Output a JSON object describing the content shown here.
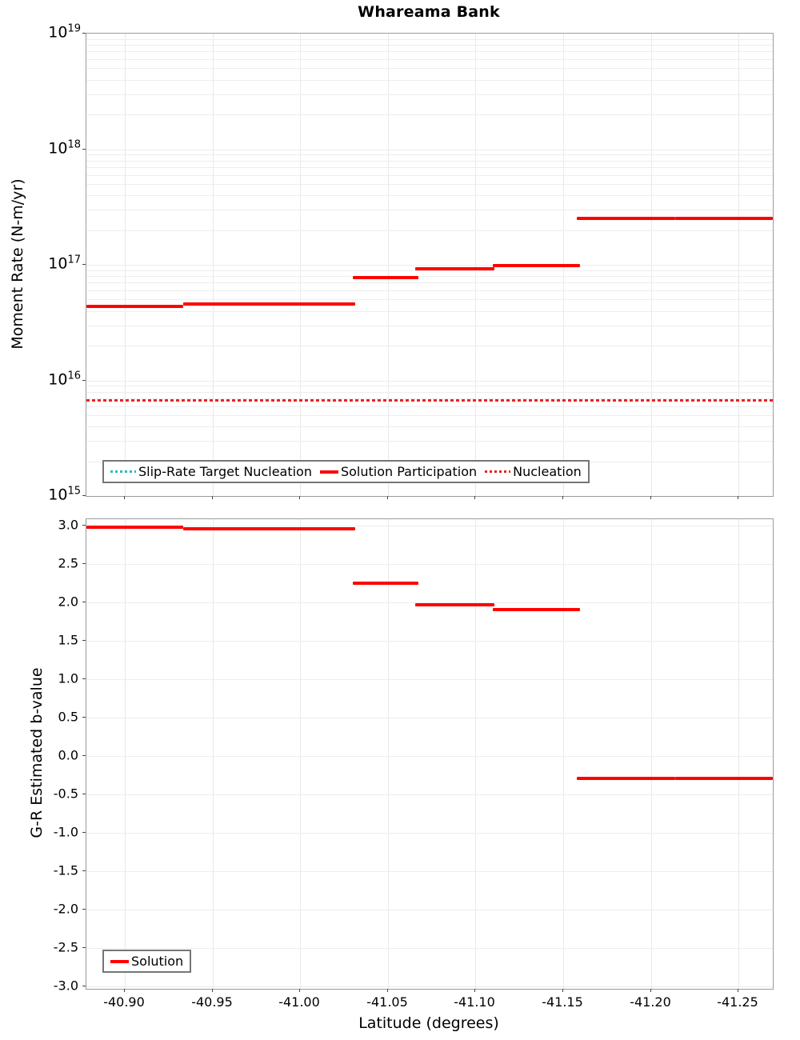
{
  "title": "Whareama Bank",
  "colors": {
    "solution": "#ff0000",
    "nucleation": "#ea2222",
    "slip_rate_target_nucleation": "#2bbdbd",
    "grid": "#e8e8e8",
    "plot_border": "#9b9b9b",
    "background": "#ffffff"
  },
  "chart_data": [
    {
      "type": "line",
      "subtype": "step-segments",
      "title": "Whareama Bank",
      "ylabel": "Moment Rate (N-m/yr)",
      "xlabel": "",
      "yscale": "log",
      "ylim": [
        1000000000000000.0,
        1e+19
      ],
      "xlim": [
        -40.878,
        -41.2696
      ],
      "x_axis_reversed_note": "latitude decreases left to right",
      "y_tick_exponents": [
        19,
        18,
        17,
        16,
        15
      ],
      "grid": true,
      "legend_position": "inside-bottom-left",
      "series": [
        {
          "name": "Slip-Rate Target Nucleation",
          "color": "#2bbdbd",
          "style": "dotted",
          "value": 6800000000000000.0,
          "note": "horizontal line coincident with Nucleation line (hidden beneath it)"
        },
        {
          "name": "Solution Participation",
          "color": "#ff0000",
          "style": "solid",
          "segments": [
            {
              "lat_start": -40.8781,
              "lat_end": -40.9333,
              "value": 4.4e+16
            },
            {
              "lat_start": -40.9333,
              "lat_end": -41.0314,
              "value": 4.6e+16
            },
            {
              "lat_start": -41.03,
              "lat_end": -41.0675,
              "value": 7.8e+16
            },
            {
              "lat_start": -41.0656,
              "lat_end": -41.1108,
              "value": 9.2e+16
            },
            {
              "lat_start": -41.1099,
              "lat_end": -41.1596,
              "value": 9.8e+16
            },
            {
              "lat_start": -41.1578,
              "lat_end": -41.2139,
              "value": 2.5e+17
            },
            {
              "lat_start": -41.2139,
              "lat_end": -41.2696,
              "value": 2.5e+17
            }
          ]
        },
        {
          "name": "Nucleation",
          "color": "#ea2222",
          "style": "dotted",
          "value": 6800000000000000.0
        }
      ]
    },
    {
      "type": "line",
      "subtype": "step-segments",
      "title": "",
      "ylabel": "G-R Estimated b-value",
      "xlabel": "Latitude (degrees)",
      "yscale": "linear",
      "ylim": [
        -3.031,
        3.083
      ],
      "xlim": [
        -40.878,
        -41.2696
      ],
      "x_ticks": [
        -40.9,
        -40.95,
        -41.0,
        -41.05,
        -41.1,
        -41.15,
        -41.2,
        -41.25
      ],
      "x_tick_labels": [
        "-40.90",
        "-40.95",
        "-41.00",
        "-41.05",
        "-41.10",
        "-41.15",
        "-41.20",
        "-41.25"
      ],
      "y_ticks": [
        3.0,
        2.5,
        2.0,
        1.5,
        1.0,
        0.5,
        0.0,
        -0.5,
        -1.0,
        -1.5,
        -2.0,
        -2.5,
        -3.0
      ],
      "y_tick_labels": [
        "3.0",
        "2.5",
        "2.0",
        "1.5",
        "1.0",
        "0.5",
        "0.0",
        "-0.5",
        "-1.0",
        "-1.5",
        "-2.0",
        "-2.5",
        "-3.0"
      ],
      "grid": true,
      "legend_position": "inside-bottom-left",
      "series": [
        {
          "name": "Solution",
          "color": "#ff0000",
          "style": "solid",
          "segments": [
            {
              "lat_start": -40.8781,
              "lat_end": -40.9333,
              "value": 2.98
            },
            {
              "lat_start": -40.9333,
              "lat_end": -41.0314,
              "value": 2.96
            },
            {
              "lat_start": -41.03,
              "lat_end": -41.0675,
              "value": 2.25
            },
            {
              "lat_start": -41.0656,
              "lat_end": -41.1108,
              "value": 1.97
            },
            {
              "lat_start": -41.1099,
              "lat_end": -41.1596,
              "value": 1.91
            },
            {
              "lat_start": -41.1578,
              "lat_end": -41.2139,
              "value": -0.29
            },
            {
              "lat_start": -41.2139,
              "lat_end": -41.2696,
              "value": -0.29
            }
          ]
        }
      ]
    }
  ]
}
